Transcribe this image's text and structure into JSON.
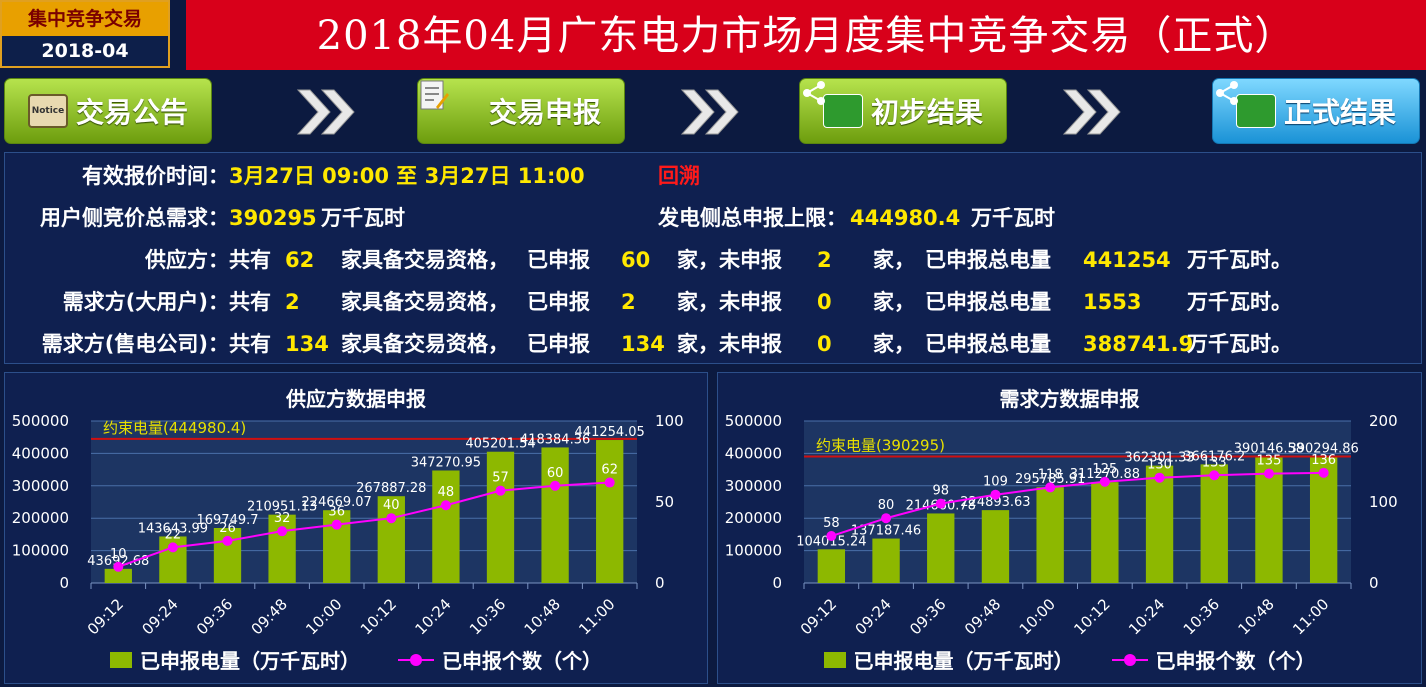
{
  "header": {
    "badge_line1": "集中竞争交易",
    "badge_line2": "2018-04",
    "title": "2018年04月广东电力市场月度集中竞争交易（正式）"
  },
  "steps": [
    {
      "label": "交易公告",
      "icon": "notice-icon",
      "icon_text": "Notice"
    },
    {
      "label": "交易申报",
      "icon": "document-edit-icon"
    },
    {
      "label": "初步结果",
      "icon": "share-icon"
    },
    {
      "label": "正式结果",
      "icon": "share-icon"
    }
  ],
  "info": {
    "valid_time_label": "有效报价时间：",
    "valid_time_value": "3月27日 09:00 至 3月27日 11:00",
    "replay": "回溯",
    "user_demand_label": "用户侧竞价总需求：",
    "user_demand_value": "390295",
    "unit_wkwh": "万千瓦时",
    "gen_limit_label": "发电侧总申报上限：",
    "gen_limit_value": "444980.4",
    "unit_wkwh_end": "万千瓦时。",
    "t_total": "共有",
    "t_qualified": "家具备交易资格，",
    "t_declared": "已申报",
    "t_not": "家，未申报",
    "t_home": "家，",
    "t_total_energy": "已申报总电量",
    "rows": [
      {
        "label": "供应方：",
        "total": "62",
        "declared": "60",
        "not": "2",
        "energy": "441254"
      },
      {
        "label": "需求方(大用户)：",
        "total": "2",
        "declared": "2",
        "not": "0",
        "energy": "1553"
      },
      {
        "label": "需求方(售电公司)：",
        "total": "134",
        "declared": "134",
        "not": "0",
        "energy": "388741.9"
      }
    ]
  },
  "legend": {
    "bar": "已申报电量（万千瓦时）",
    "line": "已申报个数（个）"
  },
  "chart_data": [
    {
      "type": "bar",
      "title": "供应方数据申报",
      "categories": [
        "09:12",
        "09:24",
        "09:36",
        "09:48",
        "10:00",
        "10:12",
        "10:24",
        "10:36",
        "10:48",
        "11:00"
      ],
      "series": [
        {
          "name": "已申报电量（万千瓦时）",
          "type": "bar",
          "axis": "left",
          "values": [
            43692.68,
            143643.99,
            169749.7,
            210951.13,
            224669.07,
            267887.28,
            347270.95,
            405201.54,
            418384.36,
            441254.05
          ],
          "labels": [
            "43692.68",
            "143643.99",
            "169749.7",
            "210951.13",
            "224669.07",
            "267887.28",
            "347270.95",
            "405201.54",
            "418384.36",
            "441254.05"
          ]
        },
        {
          "name": "已申报个数（个）",
          "type": "line",
          "axis": "right",
          "values": [
            10,
            22,
            26,
            32,
            36,
            40,
            48,
            57,
            60,
            62
          ]
        }
      ],
      "constraint": {
        "label": "约束电量(444980.4)",
        "value": 444980.4
      },
      "y_left": {
        "min": 0,
        "max": 500000,
        "ticks": [
          0,
          100000,
          200000,
          300000,
          400000,
          500000
        ]
      },
      "y_right": {
        "min": 0,
        "max": 100,
        "ticks": [
          0,
          50,
          100
        ]
      },
      "colors": {
        "bar": "#8db800",
        "line": "#ff00ff",
        "constraint": "#d01010",
        "constraint_text": "#e8e000"
      }
    },
    {
      "type": "bar",
      "title": "需求方数据申报",
      "categories": [
        "09:12",
        "09:24",
        "09:36",
        "09:48",
        "10:00",
        "10:12",
        "10:24",
        "10:36",
        "10:48",
        "11:00"
      ],
      "series": [
        {
          "name": "已申报电量（万千瓦时）",
          "type": "bar",
          "axis": "left",
          "values": [
            104015.24,
            137187.46,
            214660.78,
            224893.63,
            295785.91,
            311270.88,
            362301.33,
            366176.2,
            390146.58,
            390294.86
          ],
          "labels": [
            "104015.24",
            "137187.46",
            "214660.78",
            "224893.63",
            "295785.91",
            "311270.88",
            "362301.33",
            "366176.2",
            "390146.58",
            "390294.86"
          ]
        },
        {
          "name": "已申报个数（个）",
          "type": "line",
          "axis": "right",
          "values": [
            58,
            80,
            98,
            109,
            118,
            125,
            130,
            133,
            135,
            136
          ]
        }
      ],
      "constraint": {
        "label": "约束电量(390295)",
        "value": 390295
      },
      "y_left": {
        "min": 0,
        "max": 500000,
        "ticks": [
          0,
          100000,
          200000,
          300000,
          400000,
          500000
        ]
      },
      "y_right": {
        "min": 0,
        "max": 200,
        "ticks": [
          0,
          100,
          200
        ]
      },
      "colors": {
        "bar": "#8db800",
        "line": "#ff00ff",
        "constraint": "#d01010",
        "constraint_text": "#e8e000"
      }
    }
  ]
}
